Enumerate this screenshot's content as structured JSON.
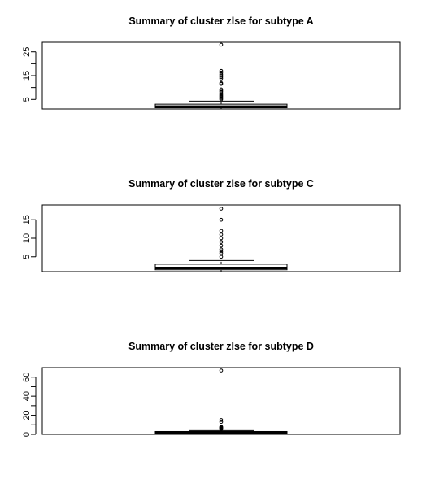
{
  "chart_data": [
    {
      "type": "boxplot",
      "title": "Summary of cluster zlse for subtype A",
      "xlabel": "",
      "ylabel": "",
      "ylim": [
        1,
        29
      ],
      "yticks": [
        5,
        15,
        25
      ],
      "yticks_minor": [
        10,
        20
      ],
      "box": {
        "min": 1,
        "q1": 1.5,
        "median": 2,
        "q3": 3,
        "whisker_high": 4.3
      },
      "outliers": [
        5,
        5.4,
        5.8,
        6.2,
        6.6,
        7,
        7.6,
        8.2,
        8.7,
        9.2,
        11.5,
        11.9,
        13.8,
        14.4,
        15,
        15.6,
        16.3,
        17,
        28
      ]
    },
    {
      "type": "boxplot",
      "title": "Summary of cluster zlse for subtype C",
      "xlabel": "",
      "ylabel": "",
      "ylim": [
        1,
        19
      ],
      "yticks": [
        5,
        10,
        15
      ],
      "box": {
        "min": 1,
        "q1": 1.5,
        "median": 2,
        "q3": 3,
        "whisker_high": 4
      },
      "outliers": [
        5,
        6,
        6.5,
        7,
        8,
        9,
        10,
        11,
        12,
        15,
        18
      ]
    },
    {
      "type": "boxplot",
      "title": "Summary of cluster zlse for subtype D",
      "xlabel": "",
      "ylabel": "",
      "ylim": [
        0,
        70
      ],
      "yticks": [
        0,
        20,
        40,
        60
      ],
      "yticks_minor": [
        10,
        30,
        50
      ],
      "box": {
        "min": 0.5,
        "q1": 1,
        "median": 2,
        "q3": 3,
        "whisker_high": 4
      },
      "outliers": [
        5,
        5.5,
        6,
        6.5,
        7,
        7.5,
        8,
        13,
        15,
        67
      ]
    }
  ]
}
